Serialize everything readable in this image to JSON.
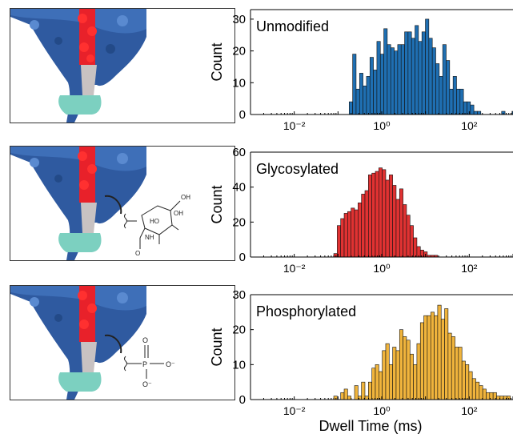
{
  "shared_xlabel": "Dwell Time (ms)",
  "panels": [
    {
      "chem": "none"
    },
    {
      "chem": "glycan",
      "labels": {
        "oh1": "OH",
        "oh2": "OH",
        "ho": "HO",
        "nh": "NH",
        "o": "O"
      }
    },
    {
      "chem": "phosphate",
      "labels": {
        "o_top": "O",
        "p": "P",
        "o_right": "O⁻",
        "o_bottom": "O⁻"
      }
    }
  ],
  "chart_data": [
    {
      "type": "bar",
      "title": "Unmodified",
      "xlabel": "",
      "ylabel": "Count",
      "xscale": "log",
      "xlim": [
        0.001,
        1000
      ],
      "ylim": [
        0,
        33
      ],
      "yticks": [
        0,
        10,
        20,
        30
      ],
      "xtick_labels": [
        {
          "value": 0.01,
          "label": "10⁻²"
        },
        {
          "value": 1,
          "label": "10⁰"
        },
        {
          "value": 100,
          "label": "10²"
        }
      ],
      "bin_start": 0.18,
      "bin_ratio": 1.2,
      "color": "#1f6fb2",
      "counts": [
        4,
        19,
        8,
        13,
        9,
        12,
        18,
        14,
        23,
        19,
        27,
        22,
        21,
        20,
        22,
        22,
        26,
        26,
        24,
        28,
        23,
        26,
        30,
        24,
        21,
        16,
        12,
        22,
        17,
        8,
        12,
        8,
        8,
        4,
        4,
        3,
        1,
        1,
        0,
        0,
        0,
        0,
        0,
        0,
        1,
        0,
        0,
        1
      ]
    },
    {
      "type": "bar",
      "title": "Glycosylated",
      "xlabel": "",
      "ylabel": "Count",
      "xscale": "log",
      "xlim": [
        0.001,
        1000
      ],
      "ylim": [
        0,
        60
      ],
      "yticks": [
        0,
        20,
        40,
        60
      ],
      "xtick_labels": [
        {
          "value": 0.01,
          "label": "10⁻²"
        },
        {
          "value": 1,
          "label": "10⁰"
        },
        {
          "value": 100,
          "label": "10²"
        }
      ],
      "bin_start": 0.08,
      "bin_ratio": 1.2,
      "color": "#e03232",
      "counts": [
        2,
        18,
        22,
        25,
        26,
        28,
        27,
        31,
        36,
        38,
        47,
        48,
        49,
        51,
        50,
        44,
        47,
        41,
        33,
        39,
        30,
        24,
        18,
        11,
        6,
        4,
        3,
        1,
        1,
        1
      ]
    },
    {
      "type": "bar",
      "title": "Phosphorylated",
      "xlabel": "Dwell Time (ms)",
      "ylabel": "Count",
      "xscale": "log",
      "xlim": [
        0.001,
        1000
      ],
      "ylim": [
        0,
        30
      ],
      "yticks": [
        0,
        10,
        20,
        30
      ],
      "xtick_labels": [
        {
          "value": 0.01,
          "label": "10⁻²"
        },
        {
          "value": 1,
          "label": "10⁰"
        },
        {
          "value": 100,
          "label": "10²"
        }
      ],
      "bin_start": 0.08,
      "bin_ratio": 1.2,
      "color": "#f0b43c",
      "counts": [
        1,
        0,
        2,
        3,
        1,
        0,
        4,
        1,
        5,
        1,
        5,
        9,
        10,
        8,
        14,
        16,
        10,
        15,
        14,
        20,
        18,
        17,
        13,
        10,
        16,
        22,
        24,
        24,
        25,
        24,
        27,
        23,
        26,
        19,
        18,
        15,
        15,
        11,
        10,
        8,
        6,
        5,
        4,
        3,
        2,
        2,
        2,
        1,
        1,
        1,
        1
      ]
    }
  ]
}
